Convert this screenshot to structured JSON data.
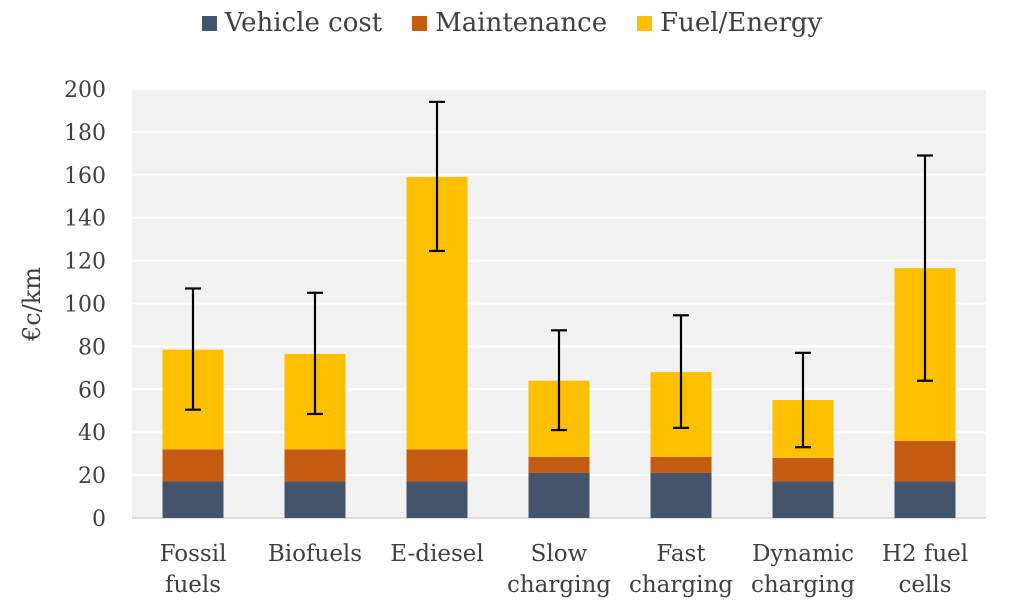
{
  "chart_data": {
    "type": "bar",
    "stacked": true,
    "title": "",
    "xlabel": "",
    "ylabel": "€c/km",
    "ylim": [
      0,
      200
    ],
    "yticks": [
      0,
      20,
      40,
      60,
      80,
      100,
      120,
      140,
      160,
      180,
      200
    ],
    "grid": true,
    "legend_position": "top-center",
    "categories": [
      [
        "Fossil",
        "fuels"
      ],
      [
        "Biofuels"
      ],
      [
        "E-diesel"
      ],
      [
        "Slow",
        "charging"
      ],
      [
        "Fast",
        "charging"
      ],
      [
        "Dynamic",
        "charging"
      ],
      [
        "H2 fuel",
        "cells"
      ]
    ],
    "series": [
      {
        "name": "Vehicle cost",
        "color": "#44546a",
        "values": [
          17,
          17,
          17,
          21,
          21,
          17,
          17
        ]
      },
      {
        "name": "Maintenance",
        "color": "#c55a11",
        "values": [
          15,
          15,
          15,
          7.5,
          7.5,
          11,
          19
        ]
      },
      {
        "name": "Fuel/Energy",
        "color": "#ffc000",
        "values": [
          46.5,
          44.5,
          127,
          35.5,
          39.5,
          27,
          80.5
        ]
      }
    ],
    "error_bars": [
      {
        "low": 50.5,
        "high": 107
      },
      {
        "low": 48.5,
        "high": 105
      },
      {
        "low": 124.5,
        "high": 194
      },
      {
        "low": 41,
        "high": 87.5
      },
      {
        "low": 42,
        "high": 94.5
      },
      {
        "low": 33,
        "high": 77
      },
      {
        "low": 64,
        "high": 169
      }
    ]
  }
}
